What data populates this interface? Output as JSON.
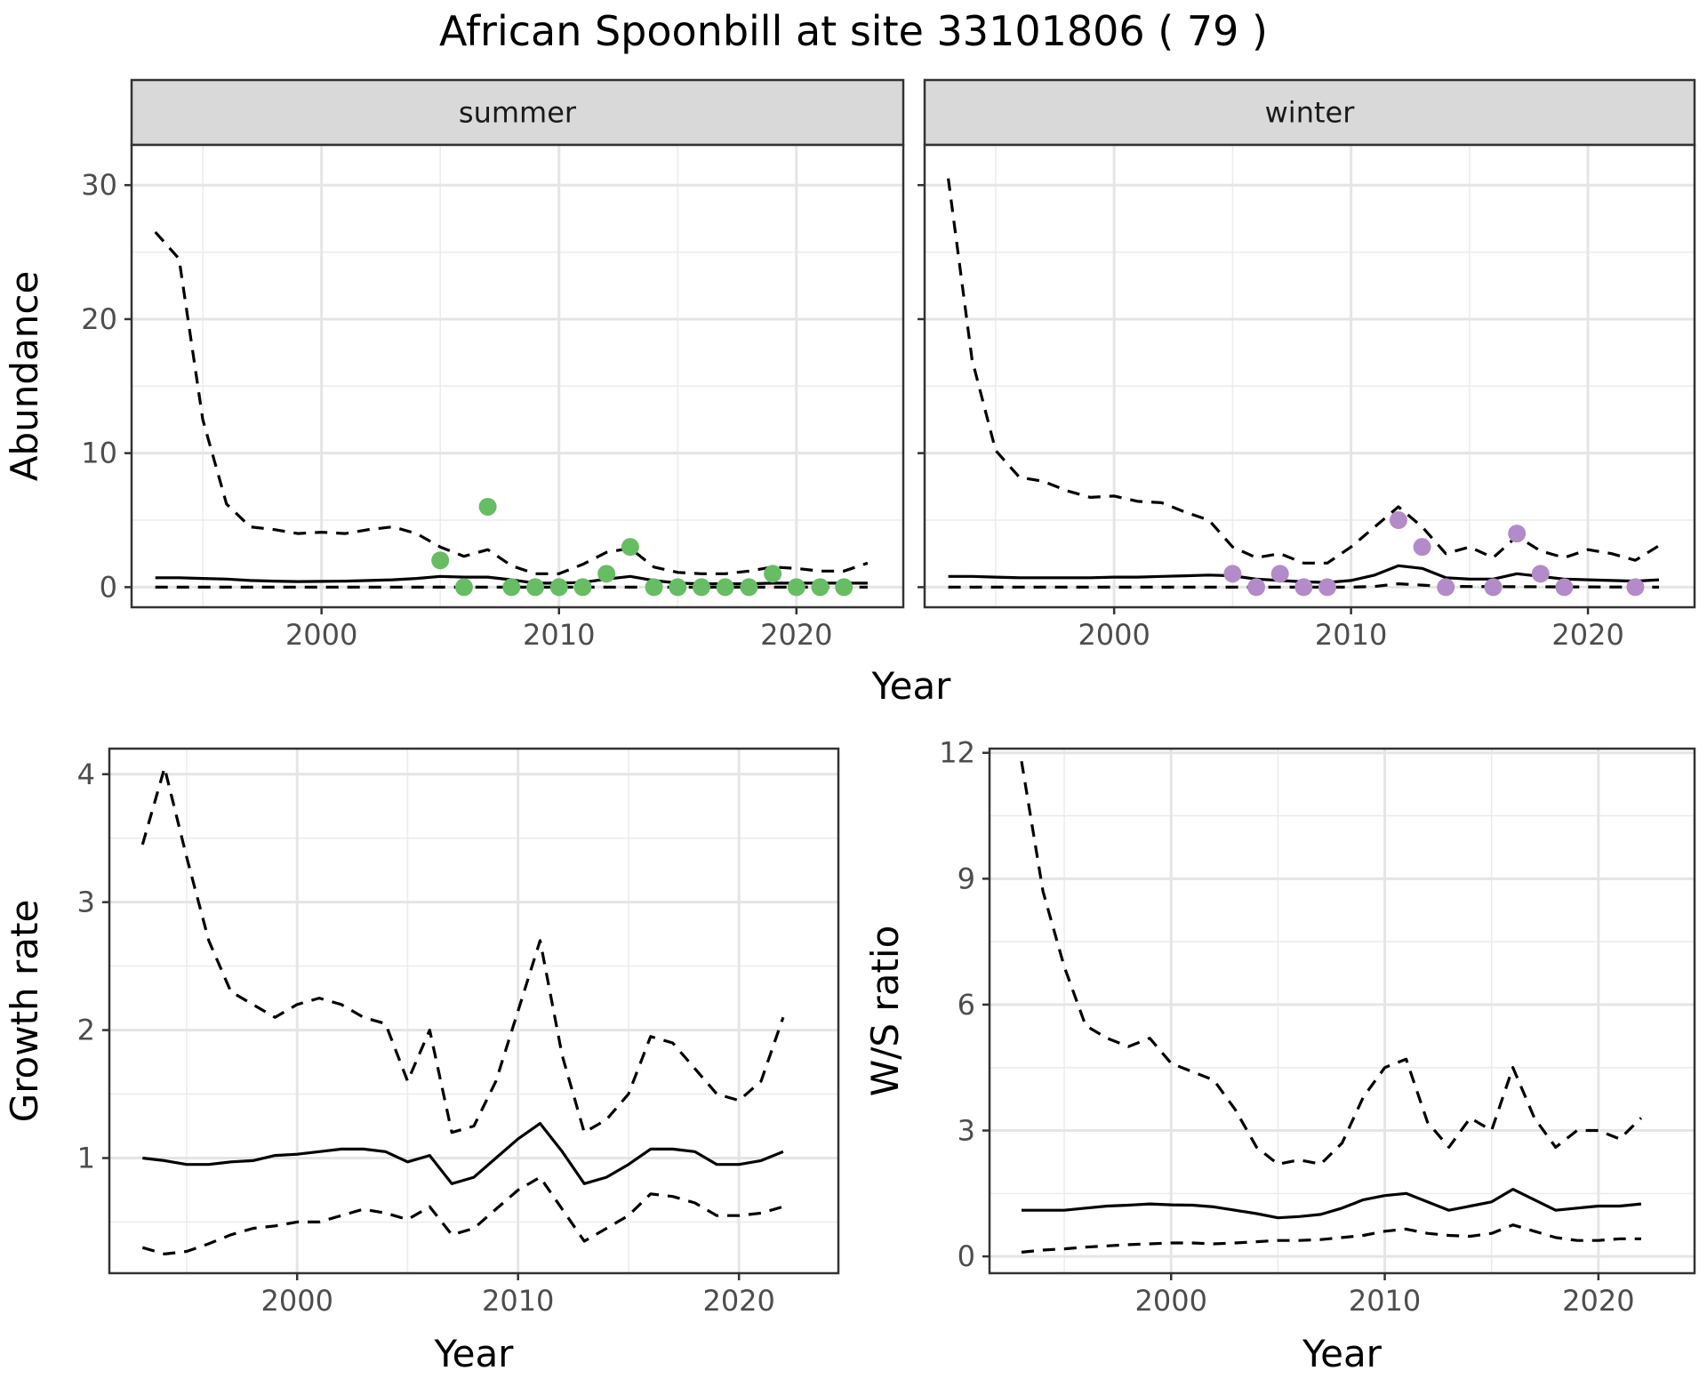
{
  "title": "African Spoonbill at site 33101806 ( 79 )",
  "chart_data": [
    {
      "type": "line",
      "facet": "summer",
      "xlabel": "Year",
      "ylabel": "Abundance",
      "xlim": [
        1992,
        2024.5
      ],
      "ylim": [
        -1.5,
        33
      ],
      "xticks": [
        2000,
        2010,
        2020
      ],
      "yticks": [
        0,
        10,
        20,
        30
      ],
      "grid": true,
      "series": [
        {
          "role": "mean",
          "style": "solid",
          "x": [
            1993,
            1994,
            1995,
            1996,
            1997,
            1998,
            1999,
            2000,
            2001,
            2002,
            2003,
            2004,
            2005,
            2006,
            2007,
            2008,
            2009,
            2010,
            2011,
            2012,
            2013,
            2014,
            2015,
            2016,
            2017,
            2018,
            2019,
            2020,
            2021,
            2022,
            2023
          ],
          "y": [
            0.7,
            0.7,
            0.65,
            0.6,
            0.5,
            0.45,
            0.42,
            0.43,
            0.45,
            0.5,
            0.55,
            0.65,
            0.8,
            0.75,
            0.75,
            0.55,
            0.3,
            0.3,
            0.35,
            0.6,
            0.8,
            0.5,
            0.3,
            0.25,
            0.25,
            0.25,
            0.3,
            0.3,
            0.3,
            0.3,
            0.3
          ]
        },
        {
          "role": "upper",
          "style": "dashed",
          "x": [
            1993,
            1994,
            1995,
            1996,
            1997,
            1998,
            1999,
            2000,
            2001,
            2002,
            2003,
            2004,
            2005,
            2006,
            2007,
            2008,
            2009,
            2010,
            2011,
            2012,
            2013,
            2014,
            2015,
            2016,
            2017,
            2018,
            2019,
            2020,
            2021,
            2022,
            2023
          ],
          "y": [
            26.5,
            24.5,
            12.5,
            6.2,
            4.5,
            4.3,
            4.0,
            4.1,
            4.0,
            4.3,
            4.5,
            4.0,
            3.0,
            2.3,
            2.8,
            1.6,
            1.0,
            1.0,
            1.7,
            2.6,
            2.9,
            1.5,
            1.1,
            1.0,
            1.0,
            1.2,
            1.5,
            1.4,
            1.2,
            1.2,
            1.8
          ]
        },
        {
          "role": "lower",
          "style": "dashed",
          "x": [
            1993,
            2023
          ],
          "y": [
            0,
            0
          ]
        }
      ],
      "points": {
        "color": "#66bd63",
        "x": [
          2005,
          2006,
          2007,
          2008,
          2009,
          2010,
          2011,
          2012,
          2013,
          2014,
          2015,
          2016,
          2017,
          2018,
          2019,
          2020,
          2021,
          2022
        ],
        "y": [
          2,
          0,
          6,
          0,
          0,
          0,
          0,
          1,
          3,
          0,
          0,
          0,
          0,
          0,
          1,
          0,
          0,
          0
        ]
      }
    },
    {
      "type": "line",
      "facet": "winter",
      "xlabel": "Year",
      "ylabel": "Abundance",
      "xlim": [
        1992,
        2024.5
      ],
      "ylim": [
        -1.5,
        33
      ],
      "xticks": [
        2000,
        2010,
        2020
      ],
      "yticks": [
        0,
        10,
        20,
        30
      ],
      "grid": true,
      "series": [
        {
          "role": "mean",
          "style": "solid",
          "x": [
            1993,
            1994,
            1995,
            1996,
            1997,
            1998,
            1999,
            2000,
            2001,
            2002,
            2003,
            2004,
            2005,
            2006,
            2007,
            2008,
            2009,
            2010,
            2011,
            2012,
            2013,
            2014,
            2015,
            2016,
            2017,
            2018,
            2019,
            2020,
            2021,
            2022,
            2023
          ],
          "y": [
            0.8,
            0.8,
            0.75,
            0.7,
            0.7,
            0.7,
            0.7,
            0.75,
            0.75,
            0.8,
            0.85,
            0.9,
            0.85,
            0.6,
            0.5,
            0.4,
            0.35,
            0.5,
            0.9,
            1.6,
            1.4,
            0.7,
            0.6,
            0.6,
            1.0,
            0.8,
            0.6,
            0.55,
            0.5,
            0.45,
            0.55
          ]
        },
        {
          "role": "upper",
          "style": "dashed",
          "x": [
            1993,
            1994,
            1995,
            1996,
            1997,
            1998,
            1999,
            2000,
            2001,
            2002,
            2003,
            2004,
            2005,
            2006,
            2007,
            2008,
            2009,
            2010,
            2011,
            2012,
            2013,
            2014,
            2015,
            2016,
            2017,
            2018,
            2019,
            2020,
            2021,
            2022,
            2023
          ],
          "y": [
            30.5,
            17,
            10.2,
            8.2,
            7.9,
            7.2,
            6.7,
            6.8,
            6.4,
            6.3,
            5.6,
            5,
            3,
            2.2,
            2.5,
            1.8,
            1.8,
            3,
            4.5,
            6,
            4.5,
            2.5,
            3,
            2.2,
            3.8,
            2.7,
            2.2,
            2.8,
            2.5,
            2.0,
            3.1
          ]
        },
        {
          "role": "lower",
          "style": "dashed",
          "x": [
            1993,
            2010,
            2011,
            2012,
            2013,
            2014,
            2023
          ],
          "y": [
            0,
            0,
            0.05,
            0.25,
            0.15,
            0.05,
            0
          ]
        }
      ],
      "points": {
        "color": "#b38bc9",
        "x": [
          2005,
          2006,
          2007,
          2008,
          2009,
          2012,
          2013,
          2014,
          2016,
          2017,
          2018,
          2019,
          2022
        ],
        "y": [
          1,
          0,
          1,
          0,
          0,
          5,
          3,
          0,
          0,
          4,
          1,
          0,
          0
        ]
      }
    },
    {
      "type": "line",
      "xlabel": "Year",
      "ylabel": "Growth rate",
      "xlim": [
        1991.5,
        2024.5
      ],
      "ylim": [
        0.1,
        4.2
      ],
      "xticks": [
        2000,
        2010,
        2020
      ],
      "yticks": [
        1,
        2,
        3,
        4
      ],
      "grid": true,
      "series": [
        {
          "role": "mean",
          "style": "solid",
          "x": [
            1993,
            1994,
            1995,
            1996,
            1997,
            1998,
            1999,
            2000,
            2001,
            2002,
            2003,
            2004,
            2005,
            2006,
            2007,
            2008,
            2009,
            2010,
            2011,
            2012,
            2013,
            2014,
            2015,
            2016,
            2017,
            2018,
            2019,
            2020,
            2021,
            2022
          ],
          "y": [
            1.0,
            0.98,
            0.95,
            0.95,
            0.97,
            0.98,
            1.02,
            1.03,
            1.05,
            1.07,
            1.07,
            1.05,
            0.97,
            1.02,
            0.8,
            0.85,
            1.0,
            1.15,
            1.27,
            1.05,
            0.8,
            0.85,
            0.95,
            1.07,
            1.07,
            1.05,
            0.95,
            0.95,
            0.98,
            1.05
          ]
        },
        {
          "role": "upper",
          "style": "dashed",
          "x": [
            1993,
            1994,
            1995,
            1996,
            1997,
            1998,
            1999,
            2000,
            2001,
            2002,
            2003,
            2004,
            2005,
            2006,
            2007,
            2008,
            2009,
            2010,
            2011,
            2012,
            2013,
            2014,
            2015,
            2016,
            2017,
            2018,
            2019,
            2020,
            2021,
            2022
          ],
          "y": [
            3.45,
            4.05,
            3.35,
            2.7,
            2.3,
            2.2,
            2.1,
            2.2,
            2.25,
            2.2,
            2.1,
            2.05,
            1.6,
            2.0,
            1.2,
            1.25,
            1.6,
            2.15,
            2.7,
            1.8,
            1.2,
            1.3,
            1.5,
            1.95,
            1.9,
            1.7,
            1.5,
            1.45,
            1.6,
            2.1
          ]
        },
        {
          "role": "lower",
          "style": "dashed",
          "x": [
            1993,
            1994,
            1995,
            1996,
            1997,
            1998,
            1999,
            2000,
            2001,
            2002,
            2003,
            2004,
            2005,
            2006,
            2007,
            2008,
            2009,
            2010,
            2011,
            2012,
            2013,
            2014,
            2015,
            2016,
            2017,
            2018,
            2019,
            2020,
            2021,
            2022
          ],
          "y": [
            0.3,
            0.25,
            0.27,
            0.33,
            0.4,
            0.45,
            0.47,
            0.5,
            0.5,
            0.55,
            0.6,
            0.57,
            0.52,
            0.62,
            0.4,
            0.45,
            0.6,
            0.75,
            0.85,
            0.6,
            0.35,
            0.45,
            0.55,
            0.72,
            0.7,
            0.65,
            0.55,
            0.55,
            0.57,
            0.62
          ]
        }
      ]
    },
    {
      "type": "line",
      "xlabel": "Year",
      "ylabel": "W/S ratio",
      "xlim": [
        1991.5,
        2024.5
      ],
      "ylim": [
        -0.4,
        12.1
      ],
      "xticks": [
        2000,
        2010,
        2020
      ],
      "yticks": [
        0,
        3,
        6,
        9,
        12
      ],
      "grid": true,
      "series": [
        {
          "role": "mean",
          "style": "solid",
          "x": [
            1993,
            1994,
            1995,
            1996,
            1997,
            1998,
            1999,
            2000,
            2001,
            2002,
            2003,
            2004,
            2005,
            2006,
            2007,
            2008,
            2009,
            2010,
            2011,
            2012,
            2013,
            2014,
            2015,
            2016,
            2017,
            2018,
            2019,
            2020,
            2021,
            2022
          ],
          "y": [
            1.1,
            1.1,
            1.1,
            1.15,
            1.2,
            1.22,
            1.25,
            1.23,
            1.22,
            1.18,
            1.1,
            1.02,
            0.92,
            0.95,
            1.0,
            1.15,
            1.35,
            1.45,
            1.5,
            1.3,
            1.1,
            1.2,
            1.3,
            1.6,
            1.35,
            1.1,
            1.15,
            1.2,
            1.2,
            1.25
          ]
        },
        {
          "role": "upper",
          "style": "dashed",
          "x": [
            1993,
            1994,
            1995,
            1996,
            1997,
            1998,
            1999,
            2000,
            2001,
            2002,
            2003,
            2004,
            2005,
            2006,
            2007,
            2008,
            2009,
            2010,
            2011,
            2012,
            2013,
            2014,
            2015,
            2016,
            2017,
            2018,
            2019,
            2020,
            2021,
            2022
          ],
          "y": [
            11.8,
            8.7,
            6.9,
            5.5,
            5.2,
            5.0,
            5.2,
            4.6,
            4.4,
            4.2,
            3.5,
            2.6,
            2.2,
            2.3,
            2.2,
            2.7,
            3.8,
            4.5,
            4.7,
            3.2,
            2.6,
            3.3,
            3.0,
            4.5,
            3.3,
            2.6,
            3.0,
            3.0,
            2.8,
            3.3
          ]
        },
        {
          "role": "lower",
          "style": "dashed",
          "x": [
            1993,
            1994,
            1995,
            1996,
            1997,
            1998,
            1999,
            2000,
            2001,
            2002,
            2003,
            2004,
            2005,
            2006,
            2007,
            2008,
            2009,
            2010,
            2011,
            2012,
            2013,
            2014,
            2015,
            2016,
            2017,
            2018,
            2019,
            2020,
            2021,
            2022
          ],
          "y": [
            0.1,
            0.15,
            0.18,
            0.22,
            0.25,
            0.28,
            0.3,
            0.32,
            0.32,
            0.3,
            0.32,
            0.35,
            0.38,
            0.38,
            0.4,
            0.45,
            0.5,
            0.6,
            0.65,
            0.55,
            0.5,
            0.48,
            0.55,
            0.75,
            0.6,
            0.45,
            0.38,
            0.38,
            0.42,
            0.42
          ]
        }
      ]
    }
  ]
}
